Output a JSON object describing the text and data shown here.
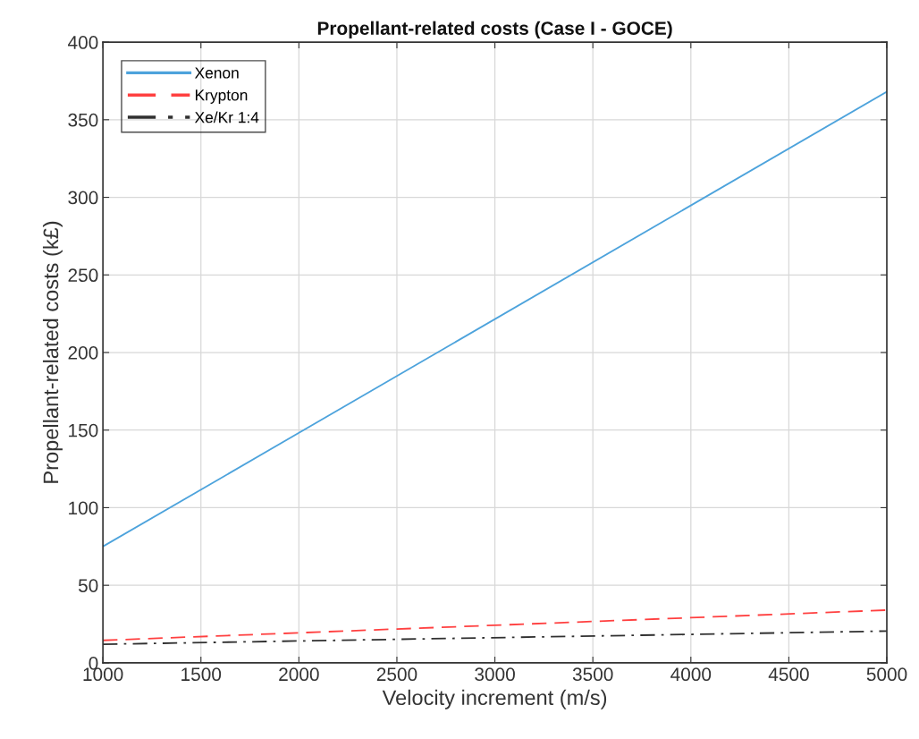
{
  "chart_data": {
    "type": "line",
    "title": "Propellant-related costs (Case I - GOCE)",
    "xlabel": "Velocity increment (m/s)",
    "ylabel": "Propellant-related costs (k£)",
    "x": [
      1000,
      5000
    ],
    "series": [
      {
        "name": "Xenon",
        "color": "#4da3dc",
        "values": [
          75,
          368
        ],
        "line_style": "solid"
      },
      {
        "name": "Krypton",
        "color": "#ff4040",
        "values": [
          14.5,
          34
        ],
        "line_style": "dashed"
      },
      {
        "name": "Xe/Kr 1:4",
        "color": "#303030",
        "values": [
          12,
          20.5
        ],
        "line_style": "dashdot"
      }
    ],
    "xlim": [
      1000,
      5000
    ],
    "xticks": [
      1000,
      1500,
      2000,
      2500,
      3000,
      3500,
      4000,
      4500,
      5000
    ],
    "ylim": [
      0,
      400
    ],
    "yticks": [
      0,
      50,
      100,
      150,
      200,
      250,
      300,
      350,
      400
    ],
    "grid": true,
    "legend": "top left",
    "marker": "none"
  }
}
